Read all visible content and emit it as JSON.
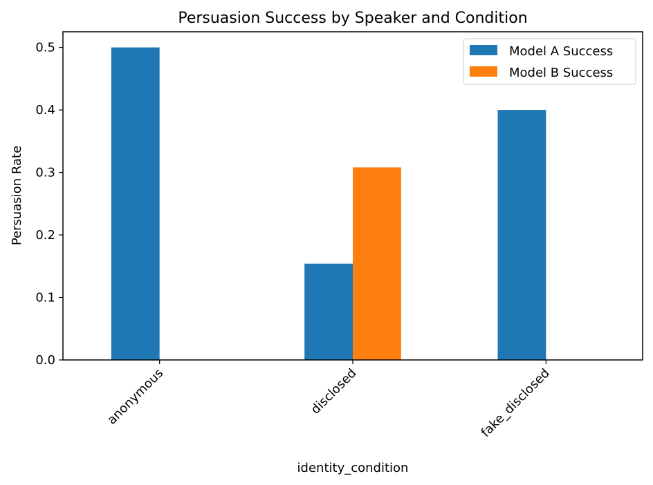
{
  "chart_data": {
    "type": "bar",
    "title": "Persuasion Success by Speaker and Condition",
    "xlabel": "identity_condition",
    "ylabel": "Persuasion Rate",
    "categories": [
      "anonymous",
      "disclosed",
      "fake_disclosed"
    ],
    "series": [
      {
        "name": "Model A Success",
        "color": "#1f77b4",
        "values": [
          0.5,
          0.154,
          0.4
        ]
      },
      {
        "name": "Model B Success",
        "color": "#ff7f0e",
        "values": [
          0.0,
          0.308,
          0.0
        ]
      }
    ],
    "ylim": [
      0,
      0.525
    ],
    "yticks": [
      0.0,
      0.1,
      0.2,
      0.3,
      0.4,
      0.5
    ],
    "ytick_labels": [
      "0.0",
      "0.1",
      "0.2",
      "0.3",
      "0.4",
      "0.5"
    ],
    "grid": false,
    "legend_position": "top-right"
  }
}
